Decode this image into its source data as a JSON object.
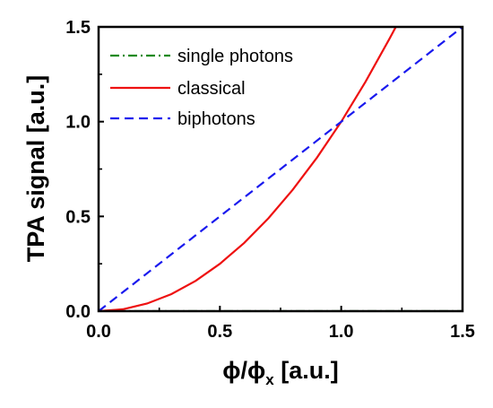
{
  "chart_data": {
    "type": "line",
    "xlabel": {
      "main": "ϕ/ϕ",
      "sub": "x",
      "unit": " [a.u.]"
    },
    "ylabel": "TPA signal [a.u.]",
    "xlim": [
      0.0,
      1.5
    ],
    "ylim": [
      0.0,
      1.5
    ],
    "x_ticks": [
      0.0,
      0.5,
      1.0,
      1.5
    ],
    "y_ticks": [
      0.0,
      0.5,
      1.0,
      1.5
    ],
    "x_tick_labels": [
      "0.0",
      "0.5",
      "1.0",
      "1.5"
    ],
    "y_tick_labels": [
      "0.0",
      "0.5",
      "1.0",
      "1.5"
    ],
    "grid": false,
    "legend_position": "top-left",
    "series": [
      {
        "name": "single photons",
        "color": "#1a8a1a",
        "style": "dash-dot",
        "x": [
          0.0,
          0.25,
          0.5,
          0.75,
          1.0,
          1.25,
          1.5
        ],
        "y": [
          0.0,
          0.0,
          0.0,
          0.0,
          0.0,
          0.0,
          0.0
        ]
      },
      {
        "name": "classical",
        "color": "#ee1111",
        "style": "solid",
        "x": [
          0.0,
          0.1,
          0.2,
          0.3,
          0.4,
          0.5,
          0.6,
          0.7,
          0.8,
          0.9,
          1.0,
          1.1,
          1.2,
          1.225
        ],
        "y": [
          0.0,
          0.01,
          0.04,
          0.09,
          0.16,
          0.25,
          0.36,
          0.49,
          0.64,
          0.81,
          1.0,
          1.21,
          1.44,
          1.5
        ]
      },
      {
        "name": "biphotons",
        "color": "#1a1aee",
        "style": "dashed",
        "x": [
          0.0,
          0.5,
          1.0,
          1.5
        ],
        "y": [
          0.0,
          0.5,
          1.0,
          1.5
        ]
      }
    ]
  }
}
